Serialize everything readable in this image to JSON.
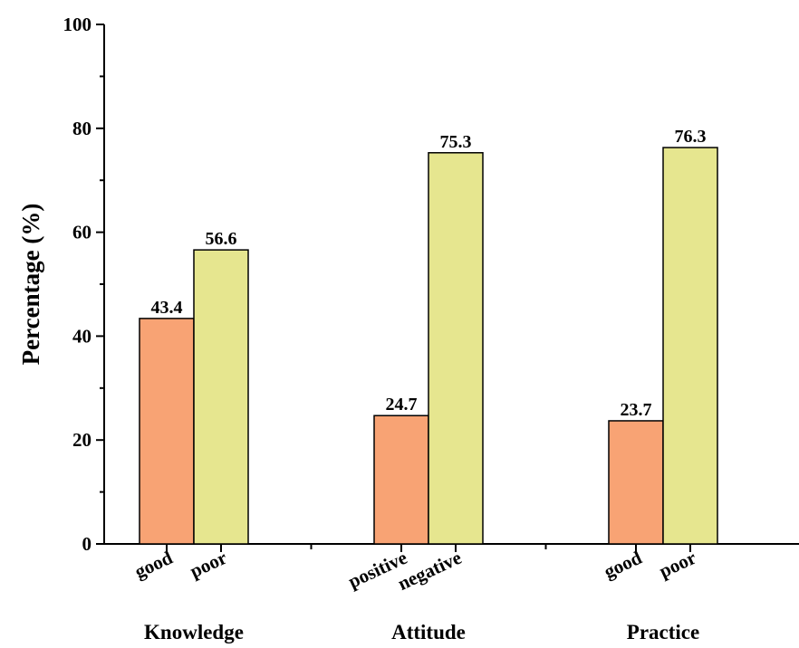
{
  "chart_data": {
    "type": "bar",
    "ylabel": "Percentage (%)",
    "ylim": [
      0,
      100
    ],
    "yticks": [
      0,
      20,
      40,
      60,
      80,
      100
    ],
    "grid": false,
    "colors": {
      "first": "#F8A374",
      "second": "#E6E68F"
    },
    "groups": [
      {
        "name": "Knowledge",
        "bars": [
          {
            "label": "good",
            "value": 43.4
          },
          {
            "label": "poor",
            "value": 56.6
          }
        ]
      },
      {
        "name": "Attitude",
        "bars": [
          {
            "label": "positive",
            "value": 24.7
          },
          {
            "label": "negative",
            "value": 75.3
          }
        ]
      },
      {
        "name": "Practice",
        "bars": [
          {
            "label": "good",
            "value": 23.7
          },
          {
            "label": "poor",
            "value": 76.3
          }
        ]
      }
    ]
  }
}
